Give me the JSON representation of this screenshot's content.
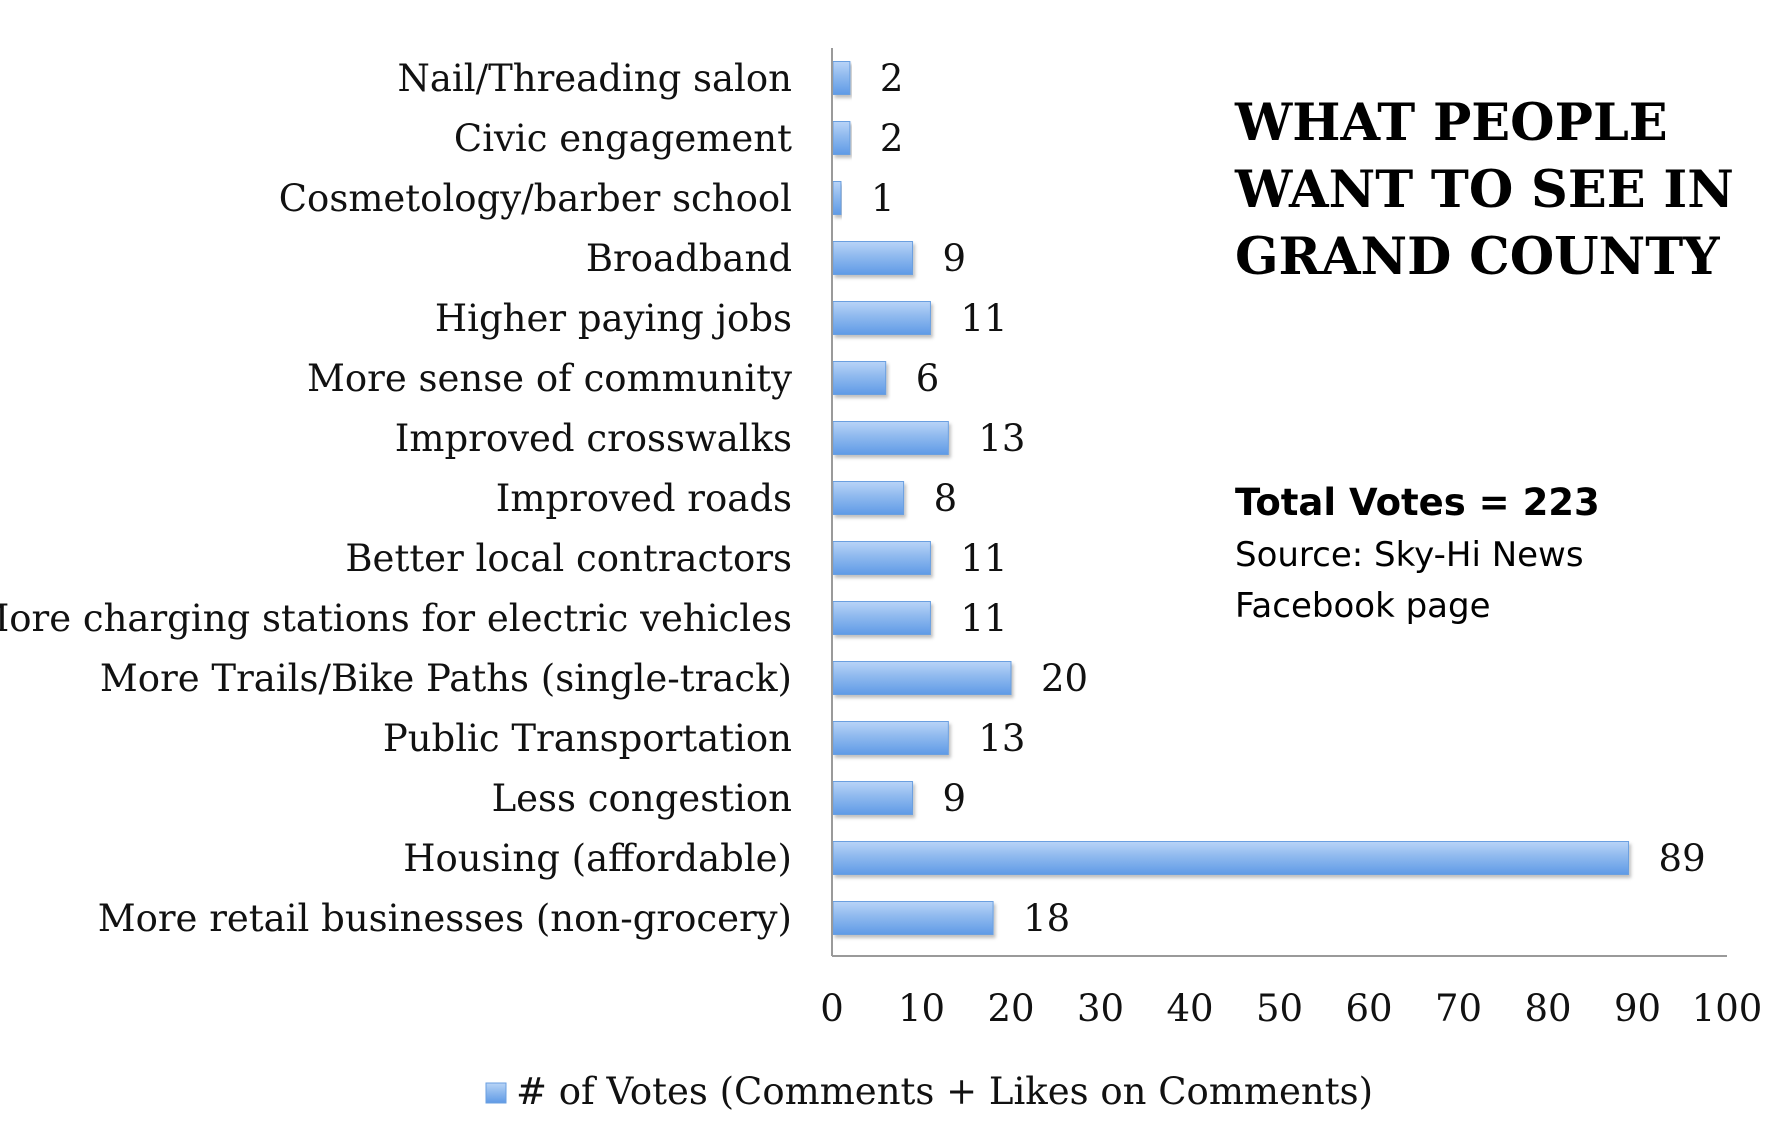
{
  "colors": {
    "bar_fill_top": "#b9d4f7",
    "bar_fill_bottom": "#5f9ae6",
    "bar_stroke": "#6a9fe0",
    "axis": "#9a9a9a",
    "text": "#111111"
  },
  "annotations": {
    "title_lines": [
      "WHAT PEOPLE",
      "WANT TO SEE IN",
      "GRAND COUNTY"
    ],
    "total_votes": "Total Votes = 223",
    "source_lines": [
      "Source: Sky-Hi News",
      "Facebook page"
    ]
  },
  "chart_data": {
    "type": "bar",
    "orientation": "horizontal",
    "categories": [
      "Nail/Threading salon",
      "Civic engagement",
      "Cosmetology/barber school",
      "Broadband",
      "Higher paying jobs",
      "More sense of community",
      "Improved crosswalks",
      "Improved roads",
      "Better local contractors",
      "More charging stations for electric vehicles",
      "More Trails/Bike Paths (single-track)",
      "Public Transportation",
      "Less congestion",
      "Housing (affordable)",
      "More retail businesses (non-grocery)"
    ],
    "series": [
      {
        "name": "# of Votes (Comments + Likes on Comments)",
        "values": [
          2,
          2,
          1,
          9,
          11,
          6,
          13,
          8,
          11,
          11,
          20,
          13,
          9,
          89,
          18
        ]
      }
    ],
    "xlim": [
      0,
      100
    ],
    "xticks": [
      0,
      10,
      20,
      30,
      40,
      50,
      60,
      70,
      80,
      90,
      100
    ],
    "data_labels": true,
    "grid": false,
    "legend_position": "bottom"
  }
}
